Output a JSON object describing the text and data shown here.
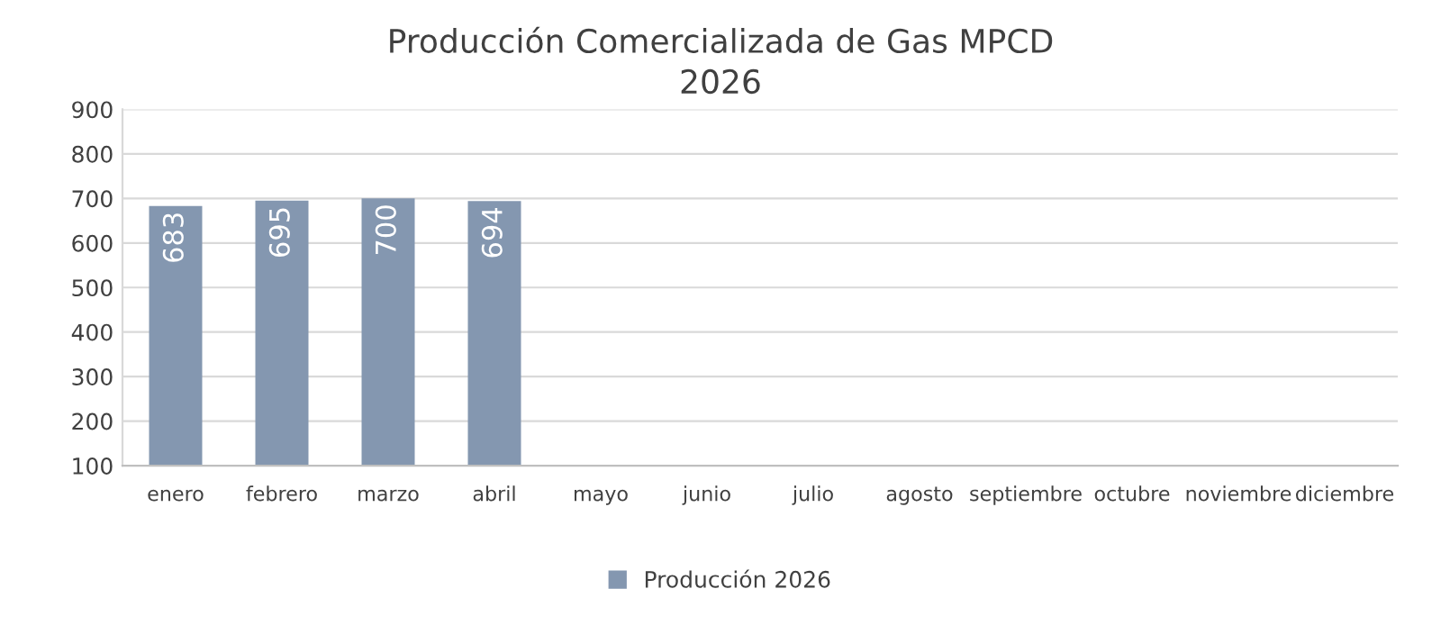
{
  "chart_data": {
    "type": "bar",
    "title": "Producción Comercializada de Gas MPCD",
    "subtitle": "2026",
    "categories": [
      "enero",
      "febrero",
      "marzo",
      "abril",
      "mayo",
      "junio",
      "julio",
      "agosto",
      "septiembre",
      "octubre",
      "noviembre",
      "diciembre"
    ],
    "series": [
      {
        "name": "Producción 2026",
        "color": "#8497b0",
        "values": [
          683,
          695,
          700,
          694,
          null,
          null,
          null,
          null,
          null,
          null,
          null,
          null
        ]
      }
    ],
    "ylim": [
      100,
      900
    ],
    "yticks": [
      100,
      200,
      300,
      400,
      500,
      600,
      700,
      800,
      900
    ],
    "grid": "y",
    "legend": "bottom",
    "data_labels": true
  }
}
